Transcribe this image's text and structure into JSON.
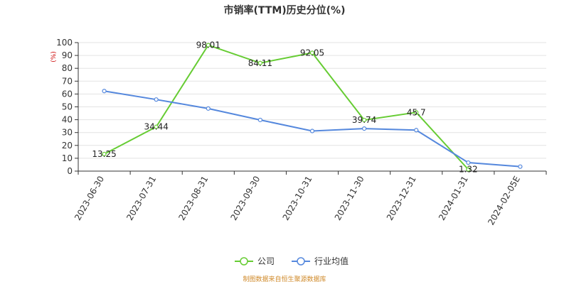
{
  "chart_data": {
    "type": "line",
    "title": "市销率(TTM)历史分位(%)",
    "y_unit": "(%)",
    "categories": [
      "2023-06-30",
      "2023-07-31",
      "2023-08-31",
      "2023-09-30",
      "2023-10-31",
      "2023-11-30",
      "2023-12-31",
      "2024-01-31",
      "2024-02-05E"
    ],
    "ylim": [
      0,
      100
    ],
    "yticks": [
      0,
      10,
      20,
      30,
      40,
      50,
      60,
      70,
      80,
      90,
      100
    ],
    "grid": true,
    "legend_position": "bottom-center",
    "series": [
      {
        "name": "公司",
        "color": "#66cc33",
        "values": [
          13.25,
          34.44,
          98.01,
          84.11,
          92.05,
          39.74,
          45.7,
          1.32,
          null
        ],
        "labels": [
          "13.25",
          "34.44",
          "98.01",
          "84.11",
          "92.05",
          "39.74",
          "45.7",
          "1.32",
          null
        ]
      },
      {
        "name": "行业均值",
        "color": "#5588dd",
        "values": [
          62.3,
          55.7,
          48.7,
          39.8,
          31.2,
          33.1,
          31.9,
          6.6,
          3.5
        ],
        "labels": []
      }
    ]
  },
  "source": "制图数据来自恒生聚源数据库"
}
